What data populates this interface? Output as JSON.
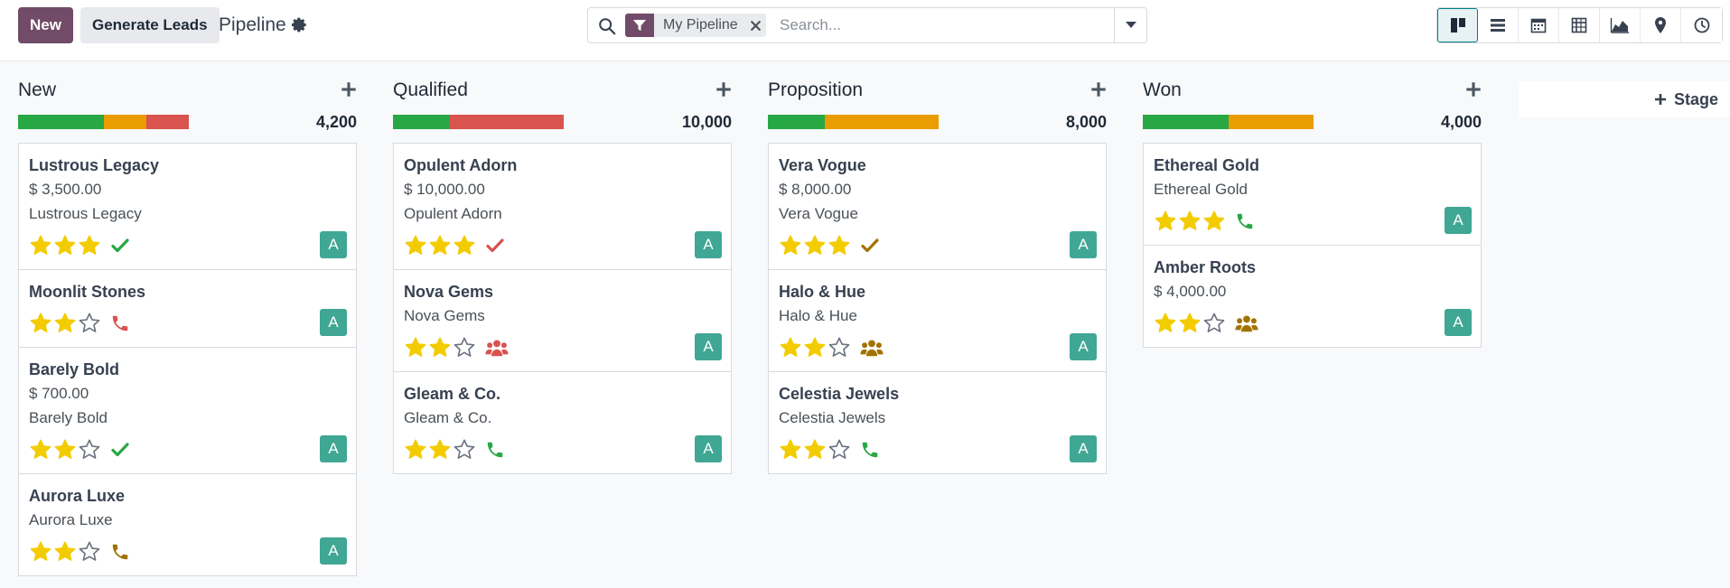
{
  "toolbar": {
    "new_label": "New",
    "generate_label": "Generate Leads",
    "title": "Pipeline",
    "settings_icon": "gear-icon"
  },
  "search": {
    "facet_label": "My Pipeline",
    "placeholder": "Search...",
    "value": ""
  },
  "views": [
    {
      "name": "kanban",
      "icon": "kanban-icon",
      "active": true
    },
    {
      "name": "list",
      "icon": "list-icon",
      "active": false
    },
    {
      "name": "calendar",
      "icon": "calendar-icon",
      "active": false
    },
    {
      "name": "pivot",
      "icon": "pivot-icon",
      "active": false
    },
    {
      "name": "graph",
      "icon": "area-chart-icon",
      "active": false
    },
    {
      "name": "map",
      "icon": "map-pin-icon",
      "active": false
    },
    {
      "name": "activity",
      "icon": "clock-icon",
      "active": false
    }
  ],
  "colors": {
    "brand": "#714B67",
    "green": "#28a745",
    "orange": "#e99d00",
    "red": "#d9534f",
    "star": "#f3cc00",
    "avatar": "#3fa794",
    "activity_green": "#28a745",
    "activity_red": "#d9534f",
    "activity_warn": "#a27200"
  },
  "columns": [
    {
      "title": "New",
      "total": "4,200",
      "progress": [
        {
          "color": "#28a745",
          "fraction": 0.5
        },
        {
          "color": "#e99d00",
          "fraction": 0.25
        },
        {
          "color": "#d9534f",
          "fraction": 0.25
        }
      ],
      "cards": [
        {
          "name": "Lustrous Legacy",
          "lines": [
            "$ 3,500.00",
            "Lustrous Legacy"
          ],
          "stars": 3,
          "activity": {
            "icon": "check-icon",
            "status": "done"
          },
          "avatar": "A"
        },
        {
          "name": "Moonlit Stones",
          "lines": [],
          "stars": 2,
          "activity": {
            "icon": "phone-icon",
            "status": "overdue"
          },
          "avatar": "A"
        },
        {
          "name": "Barely Bold",
          "lines": [
            "$ 700.00",
            "Barely Bold"
          ],
          "stars": 2,
          "activity": {
            "icon": "check-icon",
            "status": "done"
          },
          "avatar": "A"
        },
        {
          "name": "Aurora Luxe",
          "lines": [
            "Aurora Luxe"
          ],
          "stars": 2,
          "activity": {
            "icon": "phone-icon",
            "status": "today"
          },
          "avatar": "A"
        }
      ]
    },
    {
      "title": "Qualified",
      "total": "10,000",
      "progress": [
        {
          "color": "#28a745",
          "fraction": 0.333
        },
        {
          "color": "#d9534f",
          "fraction": 0.667
        }
      ],
      "cards": [
        {
          "name": "Opulent Adorn",
          "lines": [
            "$ 10,000.00",
            "Opulent Adorn"
          ],
          "stars": 3,
          "activity": {
            "icon": "check-icon",
            "status": "overdue"
          },
          "avatar": "A"
        },
        {
          "name": "Nova Gems",
          "lines": [
            "Nova Gems"
          ],
          "stars": 2,
          "activity": {
            "icon": "users-icon",
            "status": "overdue"
          },
          "avatar": "A"
        },
        {
          "name": "Gleam & Co.",
          "lines": [
            "Gleam & Co."
          ],
          "stars": 2,
          "activity": {
            "icon": "phone-icon",
            "status": "done"
          },
          "avatar": "A"
        }
      ]
    },
    {
      "title": "Proposition",
      "total": "8,000",
      "progress": [
        {
          "color": "#28a745",
          "fraction": 0.333
        },
        {
          "color": "#e99d00",
          "fraction": 0.667
        }
      ],
      "cards": [
        {
          "name": "Vera Vogue",
          "lines": [
            "$ 8,000.00",
            "Vera Vogue"
          ],
          "stars": 3,
          "activity": {
            "icon": "check-icon",
            "status": "today"
          },
          "avatar": "A"
        },
        {
          "name": "Halo & Hue",
          "lines": [
            "Halo & Hue"
          ],
          "stars": 2,
          "activity": {
            "icon": "users-icon",
            "status": "today"
          },
          "avatar": "A"
        },
        {
          "name": "Celestia Jewels",
          "lines": [
            "Celestia Jewels"
          ],
          "stars": 2,
          "activity": {
            "icon": "phone-icon",
            "status": "done"
          },
          "avatar": "A"
        }
      ]
    },
    {
      "title": "Won",
      "total": "4,000",
      "progress": [
        {
          "color": "#28a745",
          "fraction": 0.5
        },
        {
          "color": "#e99d00",
          "fraction": 0.5
        }
      ],
      "cards": [
        {
          "name": "Ethereal Gold",
          "lines": [
            "Ethereal Gold"
          ],
          "stars": 3,
          "activity": {
            "icon": "phone-icon",
            "status": "done"
          },
          "avatar": "A"
        },
        {
          "name": "Amber Roots",
          "lines": [
            "$ 4,000.00"
          ],
          "stars": 2,
          "activity": {
            "icon": "users-icon",
            "status": "today"
          },
          "avatar": "A"
        }
      ]
    }
  ],
  "add_stage_label": "Stage"
}
